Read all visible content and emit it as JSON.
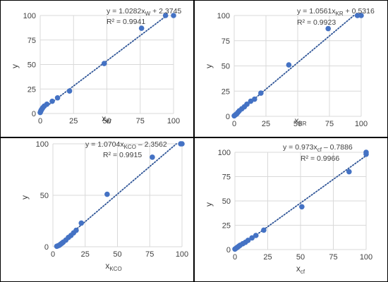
{
  "colors": {
    "marker": "#4472C4",
    "trendline": "#2F5597",
    "gridline": "#D9D9D9",
    "text": "#404040",
    "frame": "#000000"
  },
  "chart_data": [
    {
      "type": "scatter",
      "ylabel": "y",
      "xlabel": {
        "main": "x",
        "sub": "W"
      },
      "equation": {
        "pre": "y = 1.0282x",
        "sub": "W",
        "post": " + 2.3745"
      },
      "r2": "R² = 0.9941",
      "xlim": [
        0,
        100
      ],
      "ylim": [
        0,
        100
      ],
      "xticks": [
        0,
        25,
        50,
        75,
        100
      ],
      "yticks": [
        0,
        25,
        50,
        75,
        100
      ],
      "grid": true,
      "trendline": {
        "slope": 1.0282,
        "intercept": 2.3745,
        "style": "dotted"
      },
      "x": [
        0,
        0.3,
        0.6,
        1,
        1.5,
        2,
        3,
        5,
        9,
        13,
        22,
        48,
        76,
        94,
        100
      ],
      "y": [
        1,
        2,
        3,
        4,
        5,
        6,
        7.5,
        9.5,
        12.5,
        16,
        23,
        51,
        87,
        100,
        100
      ]
    },
    {
      "type": "scatter",
      "ylabel": "y",
      "xlabel": {
        "main": "x",
        "sub": "KR"
      },
      "equation": {
        "pre": "y = 1.0561x",
        "sub": "KR",
        "post": " + 0.5316"
      },
      "r2": "R² = 0.9923",
      "xlim": [
        0,
        100
      ],
      "ylim": [
        0,
        100
      ],
      "xticks": [
        0,
        25,
        50,
        75,
        100
      ],
      "yticks": [
        0,
        25,
        50,
        75,
        100
      ],
      "grid": true,
      "trendline": {
        "slope": 1.0561,
        "intercept": 0.5316,
        "style": "dotted"
      },
      "x": [
        0,
        1,
        2,
        3,
        4,
        6,
        8,
        10,
        13,
        16,
        21,
        43,
        74,
        97,
        100
      ],
      "y": [
        0.5,
        1.5,
        2.5,
        4,
        5.5,
        7.5,
        9.5,
        12,
        15,
        17,
        23,
        51,
        87,
        100,
        100
      ]
    },
    {
      "type": "scatter",
      "ylabel": "y",
      "xlabel": {
        "main": "x",
        "sub": "KCO"
      },
      "equation": {
        "pre": "y = 1.0704x",
        "sub": "KCO",
        "post": " – 2.3562"
      },
      "r2": "R² = 0.9915",
      "xlim": [
        0,
        100
      ],
      "ylim": [
        0,
        100
      ],
      "xticks": [
        0,
        25,
        50,
        75,
        100
      ],
      "yticks": [
        0,
        50,
        100
      ],
      "grid": true,
      "trendline": {
        "slope": 1.0704,
        "intercept": -2.3562,
        "style": "dotted"
      },
      "x": [
        3,
        4,
        5,
        6,
        7,
        8,
        10,
        12,
        14,
        16,
        18,
        22,
        42,
        77,
        99,
        100
      ],
      "y": [
        0.5,
        1,
        1.5,
        2.5,
        3.5,
        4.5,
        6.5,
        9,
        11,
        13.5,
        16,
        23,
        51,
        87,
        100,
        100
      ]
    },
    {
      "type": "scatter",
      "ylabel": "y",
      "xlabel": {
        "main": "x",
        "sub": "cf"
      },
      "equation": {
        "pre": "y = 0.973x",
        "sub": "cf",
        "post": " – 0.7886"
      },
      "r2": "R² = 0.9966",
      "xlim": [
        0,
        100
      ],
      "ylim": [
        0,
        100
      ],
      "xticks": [
        0,
        25,
        50,
        75,
        100
      ],
      "yticks": [
        0,
        25,
        50,
        75,
        100
      ],
      "grid": true,
      "trendline": {
        "slope": 0.973,
        "intercept": -0.7886,
        "style": "dotted"
      },
      "x": [
        0,
        1,
        2,
        3,
        4,
        6,
        8,
        10,
        13,
        16,
        22,
        51,
        87,
        100,
        100
      ],
      "y": [
        0.5,
        1.5,
        2.5,
        3.5,
        4.5,
        6,
        7.5,
        9.5,
        12,
        14.5,
        20,
        44,
        80,
        98,
        100
      ]
    }
  ]
}
